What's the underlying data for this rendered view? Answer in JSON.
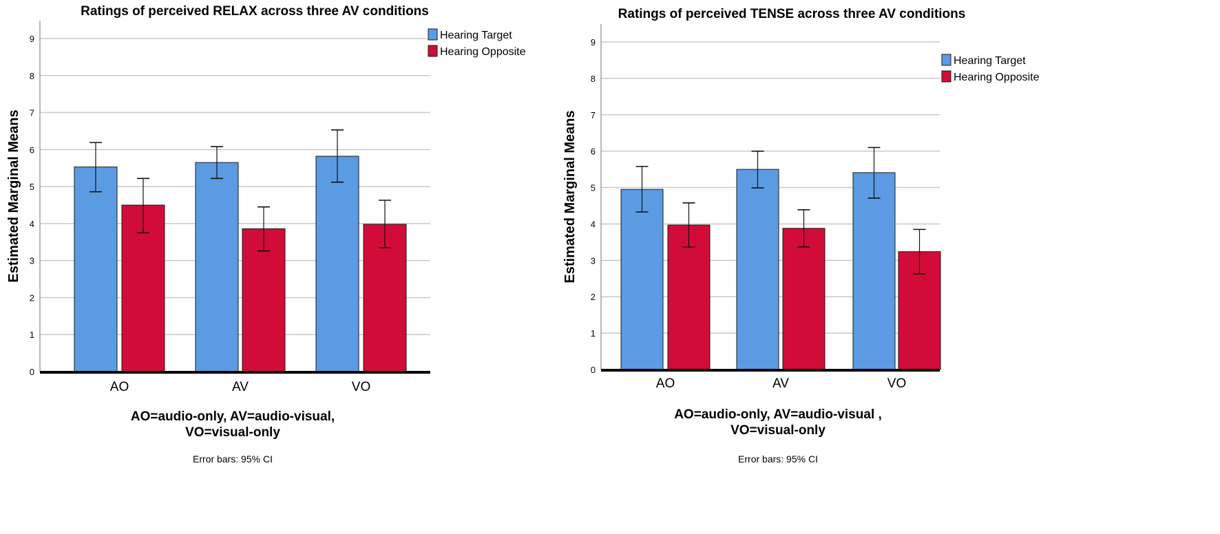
{
  "chart_data": [
    {
      "type": "bar",
      "title": "Ratings of perceived RELAX across three AV conditions",
      "ylabel": "Estimated Marginal Means",
      "xlabel_lines": [
        "AO=audio-only, AV=audio-visual,",
        "VO=visual-only"
      ],
      "note": "Error bars: 95% CI",
      "categories": [
        "AO",
        "AV",
        "VO"
      ],
      "ylim": [
        0,
        9
      ],
      "yticks": [
        0,
        1,
        2,
        3,
        4,
        5,
        6,
        7,
        8,
        9
      ],
      "grid": true,
      "legend_position": "top-right",
      "series": [
        {
          "name": "Hearing Target",
          "color": "#5b9be3",
          "values": [
            5.53,
            5.65,
            5.82
          ],
          "ci_low": [
            4.86,
            5.22,
            5.12
          ],
          "ci_high": [
            6.19,
            6.08,
            6.53
          ]
        },
        {
          "name": "Hearing Opposite",
          "color": "#d20c38",
          "values": [
            4.5,
            3.86,
            3.98
          ],
          "ci_low": [
            3.75,
            3.26,
            3.35
          ],
          "ci_high": [
            5.22,
            4.45,
            4.63
          ]
        }
      ]
    },
    {
      "type": "bar",
      "title": "Ratings of  perceived TENSE across three AV conditions",
      "ylabel": "Estimated Marginal Means",
      "xlabel_lines": [
        "AO=audio-only, AV=audio-visual ,",
        "VO=visual-only"
      ],
      "note": "Error bars: 95% CI",
      "categories": [
        "AO",
        "AV",
        "VO"
      ],
      "ylim": [
        0,
        9
      ],
      "yticks": [
        0,
        1,
        2,
        3,
        4,
        5,
        6,
        7,
        8,
        9
      ],
      "grid": true,
      "legend_position": "top-right",
      "series": [
        {
          "name": "Hearing Target",
          "color": "#5b9be3",
          "values": [
            4.95,
            5.5,
            5.41
          ],
          "ci_low": [
            4.33,
            4.99,
            4.71
          ],
          "ci_high": [
            5.58,
            6.0,
            6.1
          ]
        },
        {
          "name": "Hearing Opposite",
          "color": "#d20c38",
          "values": [
            3.97,
            3.88,
            3.24
          ],
          "ci_low": [
            3.36,
            3.37,
            2.63
          ],
          "ci_high": [
            4.58,
            4.39,
            3.85
          ]
        }
      ]
    }
  ]
}
